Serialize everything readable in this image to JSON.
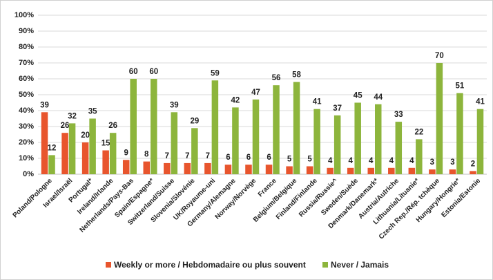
{
  "chart_data": {
    "type": "bar",
    "categories": [
      "Poland/Pologne",
      "Israel/Israël",
      "Portugal*",
      "Ireland/Irlande",
      "Netherlands/Pays-Bas",
      "Spain/Espagne*",
      "Switzerland/Suisse",
      "Slovenia/Slovénie",
      "UK/Royaume-uni",
      "Germany/Alemagne",
      "Norway/Norvège",
      "France",
      "Belgium/Belgique",
      "Finland/Finlande",
      "Russia/Russie^",
      "Sweden/Suède",
      "Denmark/Danemark*",
      "Austria/Autriche",
      "Lithuania/Lituanie*",
      "Czech Rep./Rép. tchèque",
      "Hungary/Hongrie*",
      "Estonia/Estonie"
    ],
    "series": [
      {
        "name": "Weekly or more / Hebdomadaire ou plus souvent",
        "color": "#e8552d",
        "values": [
          39,
          26,
          20,
          15,
          9,
          8,
          7,
          7,
          7,
          6,
          6,
          6,
          5,
          5,
          4,
          4,
          4,
          4,
          4,
          3,
          3,
          2
        ]
      },
      {
        "name": "Never / Jamais",
        "color": "#8db53c",
        "values": [
          12,
          32,
          35,
          26,
          60,
          60,
          39,
          29,
          59,
          42,
          47,
          56,
          58,
          41,
          37,
          45,
          44,
          33,
          22,
          70,
          51,
          41
        ]
      }
    ],
    "ylim": [
      0,
      100
    ],
    "yticks": [
      {
        "value": 0,
        "label": "0%"
      },
      {
        "value": 10,
        "label": "10%"
      },
      {
        "value": 20,
        "label": "20%"
      },
      {
        "value": 30,
        "label": "30%"
      },
      {
        "value": 40,
        "label": "40%"
      },
      {
        "value": 50,
        "label": "50%"
      },
      {
        "value": 60,
        "label": "60%"
      },
      {
        "value": 70,
        "label": "70%"
      },
      {
        "value": 80,
        "label": "80%"
      },
      {
        "value": 90,
        "label": "90%"
      },
      {
        "value": 100,
        "label": "100%"
      }
    ],
    "grid": true,
    "legend": "bottom"
  }
}
